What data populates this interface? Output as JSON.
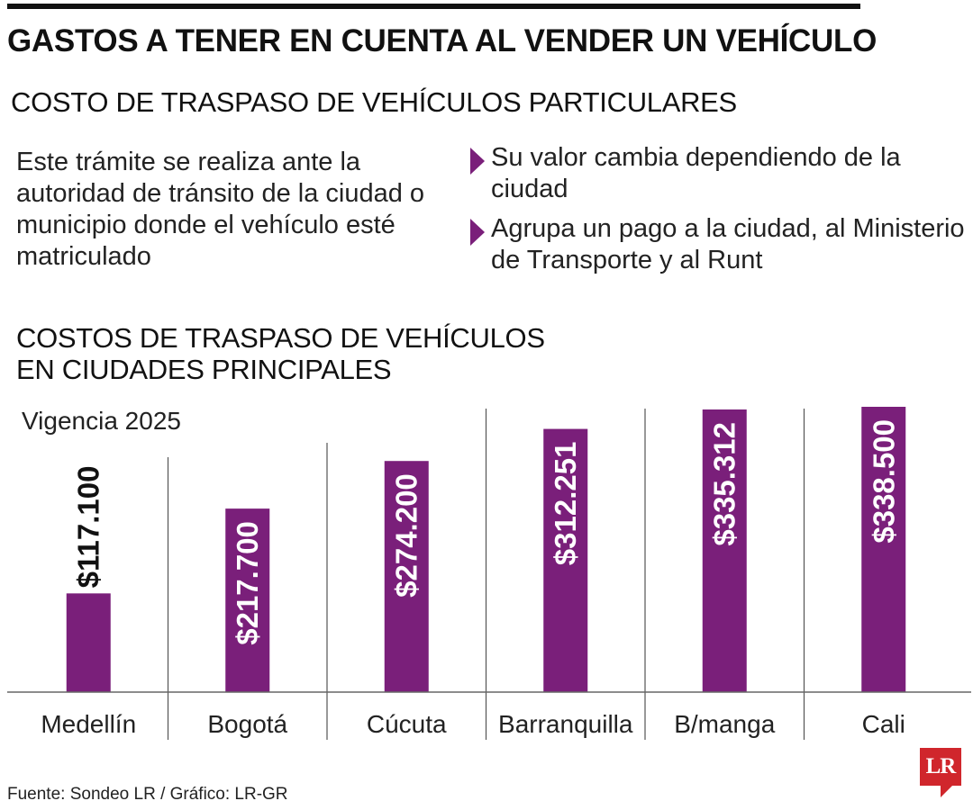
{
  "header": {
    "title": "GASTOS A TENER EN CUENTA AL VENDER UN VEHÍCULO",
    "subtitle": "COSTO DE TRASPASO DE VEHÍCULOS PARTICULARES"
  },
  "intro_text": "Este trámite se realiza ante la autoridad de tránsito de la ciudad o municipio donde el vehículo esté matriculado",
  "bullets": [
    "Su valor cambia dependiendo de la ciudad",
    "Agrupa un pago a la ciudad, al Ministerio de Transporte y al Runt"
  ],
  "colors": {
    "bar": "#7a1f7a",
    "accent": "#7a1f7a",
    "logo": "#d0262c"
  },
  "chart_data": {
    "type": "bar",
    "title_lines": [
      "COSTOS DE TRASPASO DE VEHÍCULOS",
      "EN CIUDADES PRINCIPALES"
    ],
    "subtitle": "Vigencia 2025",
    "categories": [
      "Medellín",
      "Bogotá",
      "Cúcuta",
      "Barranquilla",
      "B/manga",
      "Cali"
    ],
    "values": [
      117100,
      217700,
      274200,
      312251,
      335312,
      338500
    ],
    "value_labels": [
      "$117.100",
      "$217.700",
      "$274.200",
      "$312.251",
      "$335.312",
      "$338.500"
    ],
    "ylim": [
      0,
      338500
    ],
    "grid": false,
    "legend": "none"
  },
  "footer": {
    "source": "Fuente: Sondeo LR / Gráfico: LR-GR",
    "logo_text": "LR"
  }
}
